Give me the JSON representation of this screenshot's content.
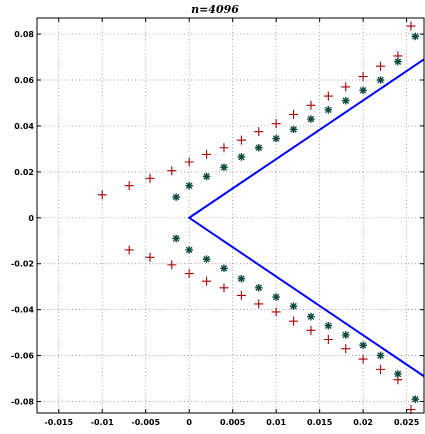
{
  "chart_data": {
    "type": "scatter",
    "title": "n=4096",
    "xlabel": "",
    "ylabel": "",
    "xlim": [
      -0.0175,
      0.027
    ],
    "ylim": [
      -0.085,
      0.087
    ],
    "grid": true,
    "legend": "none",
    "x_ticks": [
      -0.015,
      -0.01,
      -0.005,
      0,
      0.005,
      0.01,
      0.015,
      0.02,
      0.025
    ],
    "x_tick_labels": [
      "-0.015",
      "-0.01",
      "-0.005",
      "0",
      "0.005",
      "0.01",
      "0.015",
      "0.02",
      "0.025"
    ],
    "y_ticks": [
      -0.08,
      -0.06,
      -0.04,
      -0.02,
      0,
      0.02,
      0.04,
      0.06,
      0.08
    ],
    "y_tick_labels": [
      "-0.08",
      "-0.06",
      "-0.04",
      "-0.02",
      "0",
      "0.02",
      "0.04",
      "0.06",
      "0.08"
    ],
    "series": [
      {
        "marker": "plus",
        "color": "#a00000",
        "x": [
          -0.01,
          -0.0069,
          -0.0069,
          -0.0045,
          -0.0045,
          -0.002,
          -0.002,
          0.0,
          0.0,
          0.002,
          0.002,
          0.004,
          0.004,
          0.006,
          0.006,
          0.008,
          0.008,
          0.01,
          0.01,
          0.012,
          0.012,
          0.014,
          0.014,
          0.016,
          0.016,
          0.018,
          0.018,
          0.02,
          0.02,
          0.022,
          0.022,
          0.024,
          0.024,
          0.0255,
          0.0255
        ],
        "y": [
          0.01,
          0.014,
          -0.014,
          0.0172,
          -0.0172,
          0.0205,
          -0.0205,
          0.0243,
          -0.0243,
          0.0276,
          -0.0276,
          0.0305,
          -0.0305,
          0.0338,
          -0.0338,
          0.0375,
          -0.0375,
          0.041,
          -0.041,
          0.045,
          -0.045,
          0.049,
          -0.049,
          0.053,
          -0.053,
          0.057,
          -0.057,
          0.0615,
          -0.0615,
          0.066,
          -0.066,
          0.0705,
          -0.0705,
          0.0835,
          -0.0835
        ]
      },
      {
        "marker": "star",
        "color": "#0f4a40",
        "x": [
          -0.0015,
          -0.0015,
          0.0,
          0.0,
          0.002,
          0.002,
          0.004,
          0.004,
          0.006,
          0.006,
          0.008,
          0.008,
          0.01,
          0.01,
          0.012,
          0.012,
          0.014,
          0.014,
          0.016,
          0.016,
          0.018,
          0.018,
          0.02,
          0.02,
          0.022,
          0.022,
          0.024,
          0.024,
          0.026,
          0.026
        ],
        "y": [
          0.009,
          -0.009,
          0.014,
          -0.014,
          0.018,
          -0.018,
          0.022,
          -0.022,
          0.0265,
          -0.0265,
          0.0305,
          -0.0305,
          0.0345,
          -0.0345,
          0.0385,
          -0.0385,
          0.043,
          -0.043,
          0.047,
          -0.047,
          0.051,
          -0.051,
          0.0555,
          -0.0555,
          0.06,
          -0.06,
          0.068,
          -0.068,
          0.079,
          -0.079
        ]
      },
      {
        "marker": "line",
        "color": "#0000ff",
        "x": [
          0.027,
          0.0,
          0.027
        ],
        "y": [
          0.069,
          0.0,
          -0.069
        ]
      }
    ]
  }
}
